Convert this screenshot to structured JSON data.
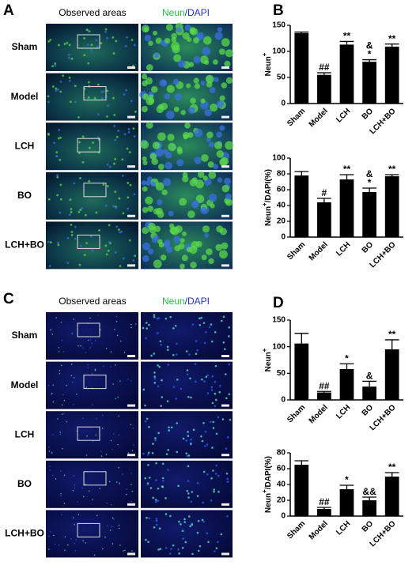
{
  "panels": [
    {
      "label": "A",
      "col1": "Observed areas",
      "col2a": "Neun",
      "col2b": "/DAPI",
      "rows": [
        "Sham",
        "Model",
        "LCH",
        "BO",
        "LCH+BO"
      ]
    },
    {
      "label": "C",
      "col1": "Observed areas",
      "col2a": "Neun",
      "col2b": "/DAPI",
      "rows": [
        "Sham",
        "Model",
        "LCH",
        "BO",
        "LCH+BO"
      ]
    }
  ],
  "chart_labels": [
    "B",
    "D"
  ],
  "chart_data": [
    {
      "type": "bar",
      "ylabel": "Neun",
      "ylabel_sup": "+",
      "categories": [
        "Sham",
        "Model",
        "LCH",
        "BO",
        "LCH+BO"
      ],
      "values": [
        135,
        55,
        113,
        80,
        109
      ],
      "errors": [
        2,
        4,
        6,
        4,
        5
      ],
      "color": "#000000",
      "annotations": [
        [],
        [
          "##"
        ],
        [
          "**"
        ],
        [
          "&",
          "*"
        ],
        [
          "**"
        ]
      ],
      "ylim": [
        0,
        150
      ],
      "yticks": [
        0,
        50,
        100,
        150
      ]
    },
    {
      "type": "bar",
      "ylabel": "Neun",
      "ylabel_sup": "+",
      "ylabel_rest": "/DAPI(%)",
      "categories": [
        "Sham",
        "Model",
        "LCH",
        "BO",
        "LCH+BO"
      ],
      "values": [
        78,
        44,
        73,
        57,
        77
      ],
      "errors": [
        5,
        5,
        6,
        5,
        2
      ],
      "color": "#000000",
      "annotations": [
        [],
        [
          "#"
        ],
        [
          "**"
        ],
        [
          "&",
          "*"
        ],
        [
          "**"
        ]
      ],
      "ylim": [
        0,
        100
      ],
      "yticks": [
        0,
        20,
        40,
        60,
        80,
        100
      ]
    },
    {
      "type": "bar",
      "ylabel": "Neun",
      "ylabel_sup": "+",
      "categories": [
        "Sham",
        "Model",
        "LCH",
        "BO",
        "LCH+BO"
      ],
      "values": [
        106,
        14,
        58,
        25,
        95
      ],
      "errors": [
        19,
        2,
        10,
        10,
        18
      ],
      "color": "#000000",
      "annotations": [
        [],
        [
          "##"
        ],
        [
          "*"
        ],
        [
          "&"
        ],
        [
          "**"
        ]
      ],
      "ylim": [
        0,
        150
      ],
      "yticks": [
        0,
        50,
        100,
        150
      ]
    },
    {
      "type": "bar",
      "ylabel": "Neun",
      "ylabel_sup": "+",
      "ylabel_rest": "/DAPI(%)",
      "categories": [
        "Sham",
        "Model",
        "LCH",
        "BO",
        "LCH+BO"
      ],
      "values": [
        65,
        9,
        34,
        20,
        50
      ],
      "errors": [
        5,
        2,
        5,
        4,
        5
      ],
      "color": "#000000",
      "annotations": [
        [],
        [
          "##"
        ],
        [
          "*"
        ],
        [
          "&&"
        ],
        [
          "**"
        ]
      ],
      "ylim": [
        0,
        80
      ],
      "yticks": [
        0,
        20,
        40,
        60,
        80
      ]
    }
  ]
}
